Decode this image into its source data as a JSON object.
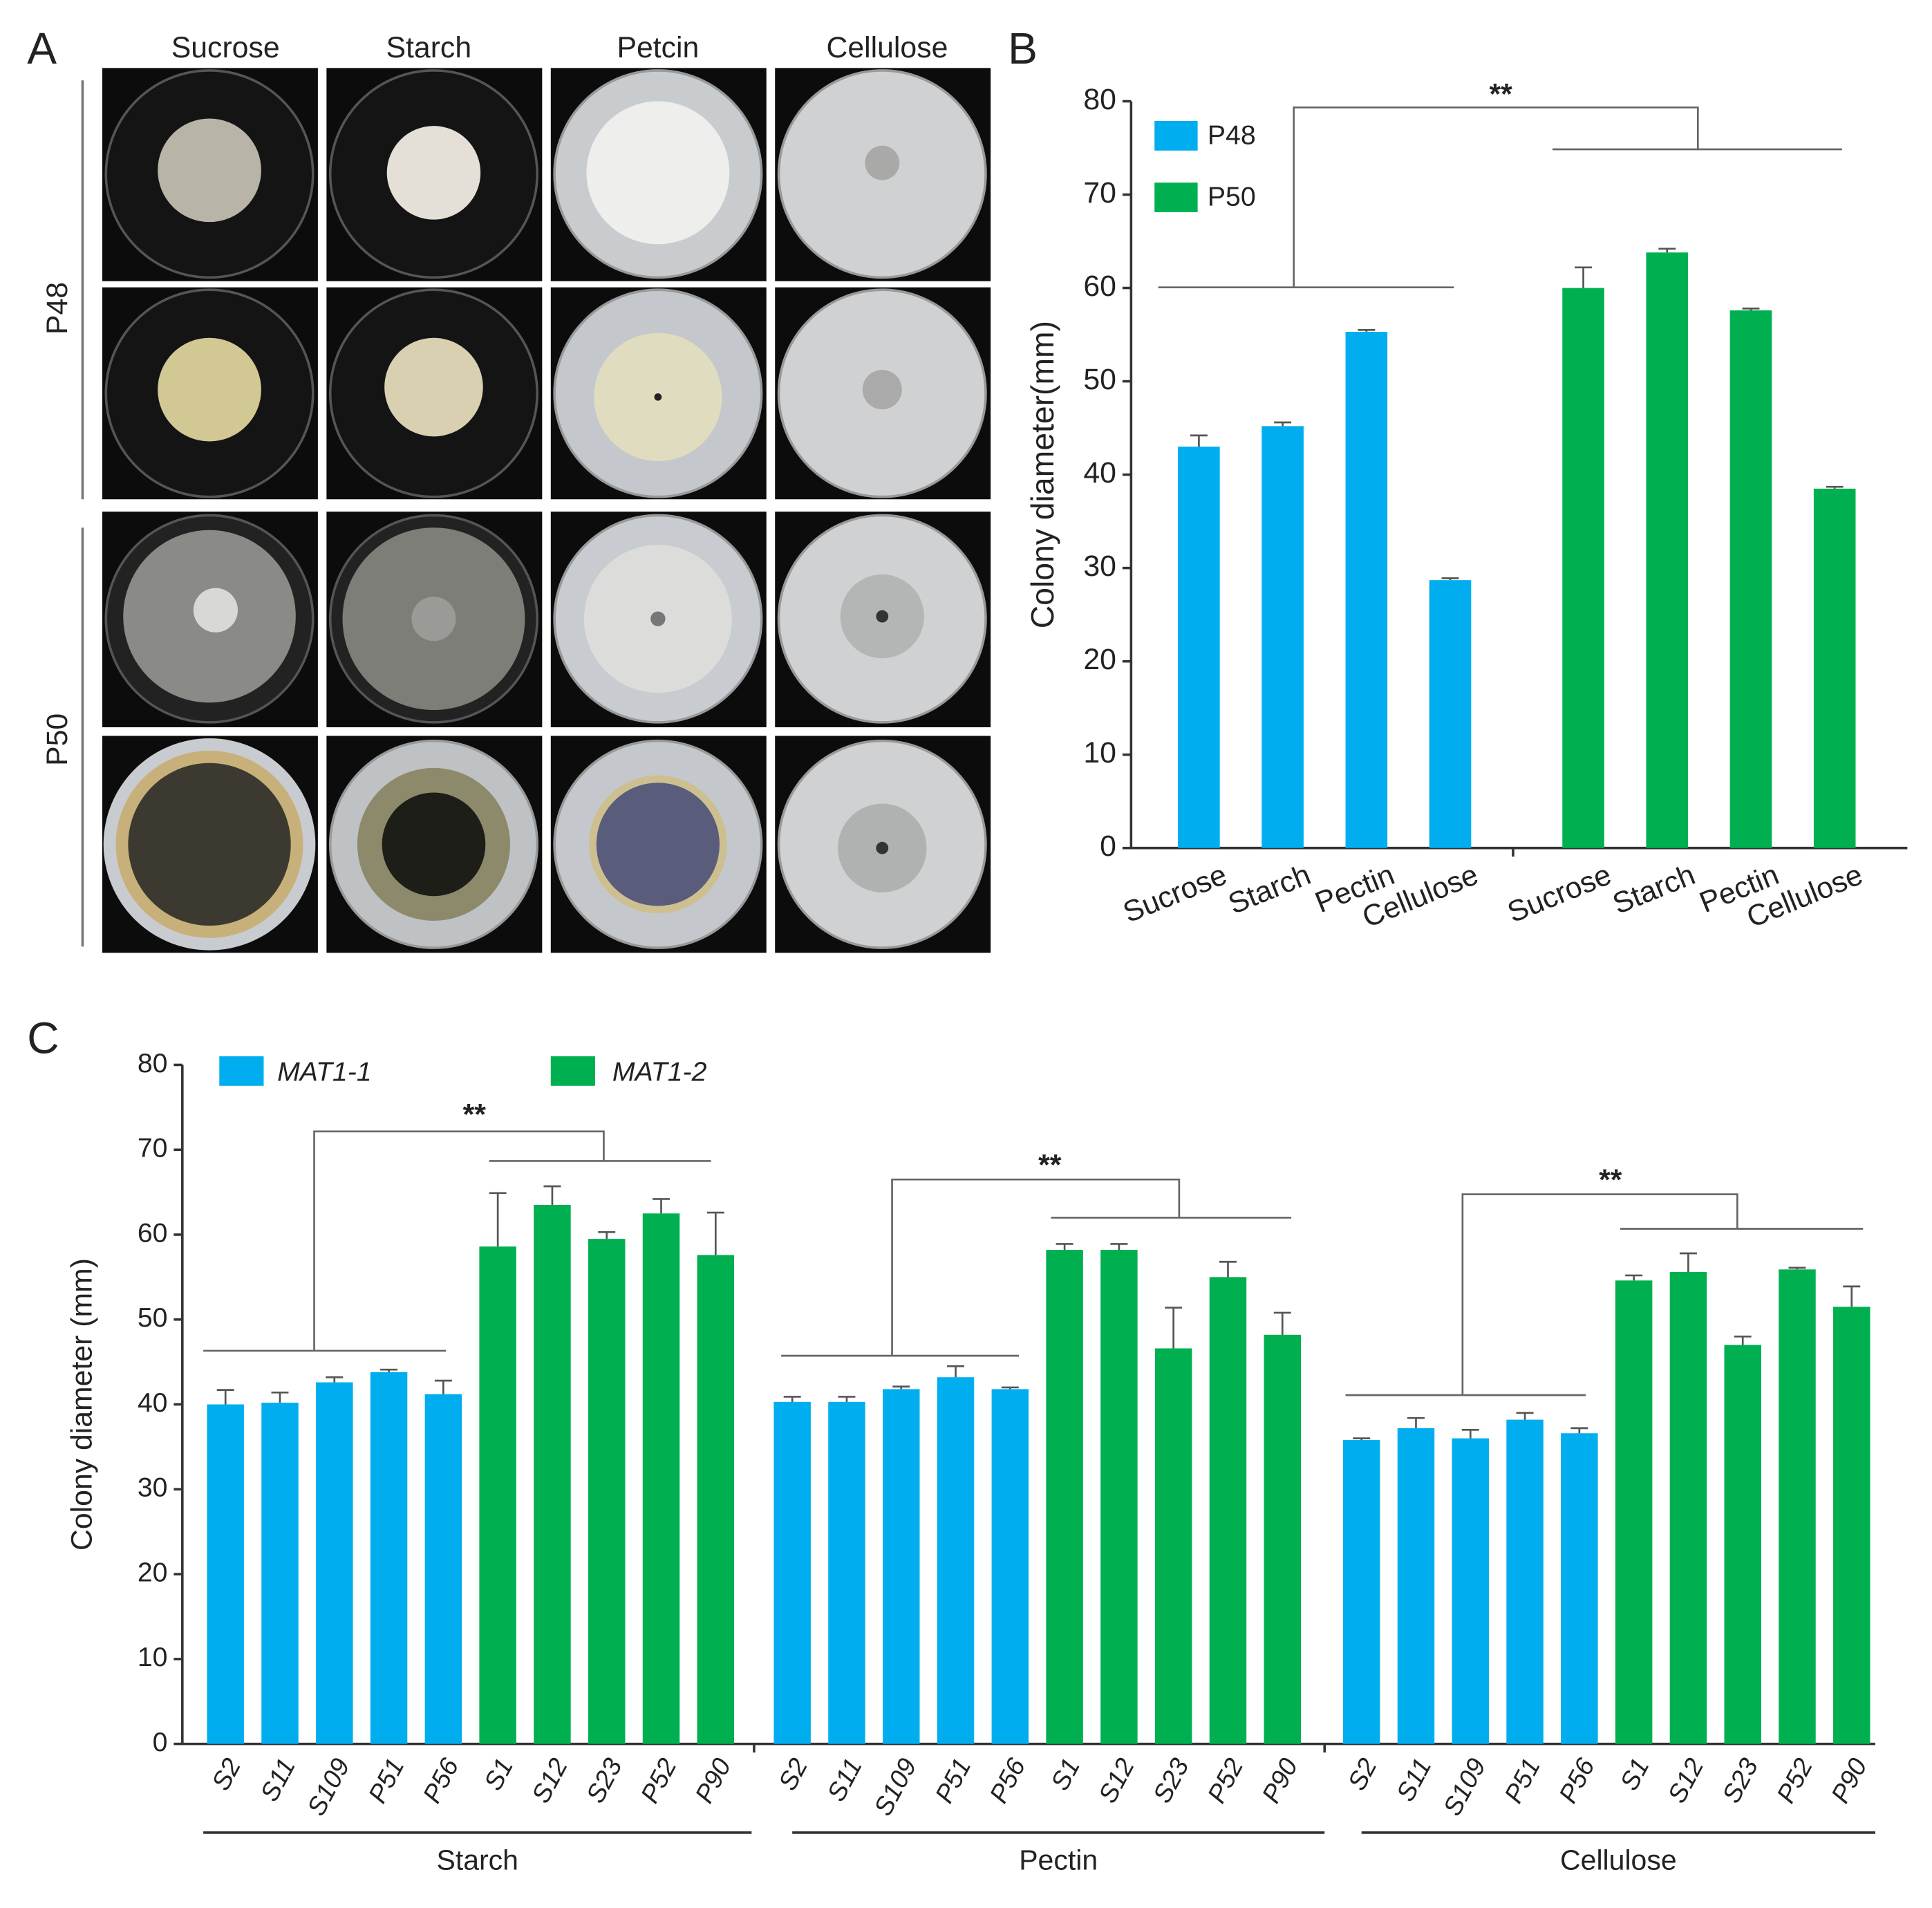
{
  "panel_labels": [
    "A",
    "B",
    "C"
  ],
  "panel_a": {
    "columns": [
      "Sucrose",
      "Starch",
      "Petcin",
      "Cellulose"
    ],
    "rows": [
      "P48",
      "P50"
    ]
  },
  "chart_data": [
    {
      "type": "bar",
      "ylabel": "Colony diameter(mm)",
      "categories": [
        "Sucrose",
        "Starch",
        "Pectin",
        "Cellulose"
      ],
      "series": [
        {
          "name": "P48",
          "color": "#00aeef",
          "values": [
            43,
            45.2,
            55.3,
            28.7
          ],
          "errors": [
            1.2,
            0.4,
            0.2,
            0.2
          ]
        },
        {
          "name": "P50",
          "color": "#00b050",
          "values": [
            60,
            63.8,
            57.6,
            38.5
          ],
          "errors": [
            2.2,
            0.4,
            0.2,
            0.2
          ]
        }
      ],
      "annotations": [
        "**"
      ],
      "ylim": [
        0,
        80
      ],
      "yticks": [
        0,
        10,
        20,
        30,
        40,
        50,
        60,
        70,
        80
      ]
    },
    {
      "type": "grouped-bar",
      "ylabel": "Colony diameter (mm)",
      "categories": [
        "Starch",
        "Pectin",
        "Cellulose"
      ],
      "series": [
        {
          "name": "MAT1-1",
          "color": "#00aeef",
          "strains": [
            "S2",
            "S11",
            "S109",
            "P51",
            "P56"
          ],
          "values": [
            [
              40,
              40.2,
              42.6,
              43.8,
              41.2
            ],
            [
              40.3,
              40.3,
              41.8,
              43.2,
              41.8
            ],
            [
              35.8,
              37.2,
              36,
              38.2,
              36.6
            ]
          ],
          "errors": [
            [
              1.7,
              1.2,
              0.6,
              0.3,
              1.6
            ],
            [
              0.6,
              0.6,
              0.3,
              1.3,
              0.2
            ],
            [
              0.2,
              1.2,
              1,
              0.8,
              0.6
            ]
          ]
        },
        {
          "name": "MAT1-2",
          "color": "#00b050",
          "strains": [
            "S1",
            "S12",
            "S23",
            "P52",
            "P90"
          ],
          "values": [
            [
              58.6,
              63.5,
              59.5,
              62.5,
              57.6
            ],
            [
              58.2,
              58.2,
              46.6,
              55,
              48.2
            ],
            [
              54.6,
              55.6,
              47,
              55.9,
              51.5
            ]
          ],
          "errors": [
            [
              6.3,
              2.2,
              0.8,
              1.7,
              5
            ],
            [
              0.7,
              0.7,
              4.8,
              1.8,
              2.6
            ],
            [
              0.6,
              2.2,
              1,
              0.2,
              2.4
            ]
          ]
        }
      ],
      "annotations": [
        "**",
        "**",
        "**"
      ],
      "ylim": [
        0,
        80
      ],
      "yticks": [
        0,
        10,
        20,
        30,
        40,
        50,
        60,
        70,
        80
      ]
    }
  ]
}
